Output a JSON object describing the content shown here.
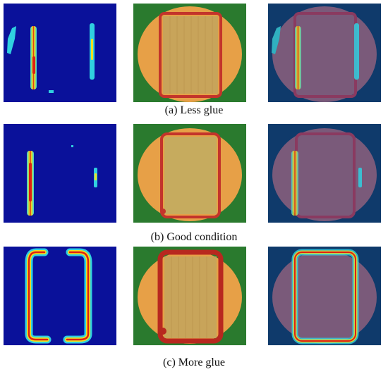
{
  "figure": {
    "rows": [
      {
        "caption": "(a) Less glue"
      },
      {
        "caption": "(b) Good condition"
      },
      {
        "caption": "(c) More glue"
      }
    ]
  },
  "colors": {
    "heatmap_background": "#0a119a",
    "photo_background": "#2a7a2e",
    "chip_disk": "#e7a047",
    "chip_grid": "#c8a45a",
    "glue_bead": "#c3342b",
    "overlay_background": "#0f3a6b",
    "overlay_disk": "#7a5a7a",
    "heat_hot": "#e02010",
    "heat_warm": "#f0e020",
    "heat_mid": "#30d0e0"
  },
  "icons": {
    "heatmap": "glue-heatmap-image",
    "photo": "chip-photo-image",
    "overlay": "overlay-image"
  }
}
